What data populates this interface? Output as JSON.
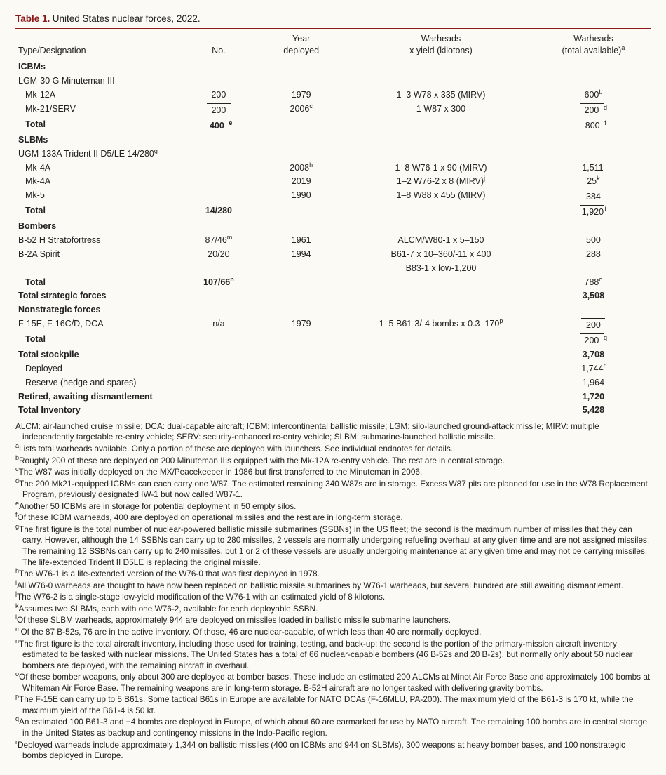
{
  "title_label": "Table 1.",
  "title_text": "United States nuclear forces, 2022.",
  "columns": {
    "c1": "Type/Designation",
    "c2": "No.",
    "c3_line1": "Year",
    "c3_line2": "deployed",
    "c4_line1": "Warheads",
    "c4_line2": "x yield (kilotons)",
    "c5_line1": "Warheads",
    "c5_line2": "(total available)",
    "c5_sup": "a"
  },
  "rows": [
    {
      "c1": "ICBMs",
      "bold": true
    },
    {
      "c1": "LGM-30 G Minuteman III"
    },
    {
      "c1": "Mk-12A",
      "indent": 1,
      "c2": "200",
      "c3": "1979",
      "c4": "1–3 W78 x 335 (MIRV)",
      "c5": "600",
      "c5sup": "b"
    },
    {
      "c1": "Mk-21/SERV",
      "indent": 1,
      "c2": "200",
      "c2over": true,
      "c3": "2006",
      "c3sup": "c",
      "c4": "1 W87 x 300",
      "c5": "200",
      "c5over": true,
      "c5sup": "d"
    },
    {
      "c1": "Total",
      "indent": 1,
      "bold": true,
      "c2": "400",
      "c2over": true,
      "c2sup": "e",
      "c5": "800",
      "c5over": true,
      "c5sup": "f"
    },
    {
      "c1": "SLBMs",
      "bold": true
    },
    {
      "c1": "UGM-133A Trident II D5/LE 14/280",
      "c1sup": "g"
    },
    {
      "c1": "Mk-4A",
      "indent": 1,
      "c3": "2008",
      "c3sup": "h",
      "c4": "1–8 W76-1 x 90 (MIRV)",
      "c5": "1,511",
      "c5sup": "i"
    },
    {
      "c1": "Mk-4A",
      "indent": 1,
      "c3": "2019",
      "c4": "1–2 W76-2 x 8 (MIRV)",
      "c4sup": "j",
      "c5": "25",
      "c5sup": "k"
    },
    {
      "c1": "Mk-5",
      "indent": 1,
      "c3": "1990",
      "c4": "1–8 W88 x 455 (MIRV)",
      "c5": "384",
      "c5over": true
    },
    {
      "c1": "Total",
      "indent": 1,
      "bold": true,
      "c2": "14/280",
      "c5": "1,920",
      "c5over": true,
      "c5sup": "l"
    },
    {
      "c1": "Bombers",
      "bold": true
    },
    {
      "c1": "B-52 H Stratofortress",
      "c2": "87/46",
      "c2sup": "m",
      "c3": "1961",
      "c4": "ALCM/W80-1 x 5–150",
      "c5": "500"
    },
    {
      "c1": "B-2A Spirit",
      "c2": "20/20",
      "c3": "1994",
      "c4": "B61-7 x 10–360/-11 x 400",
      "c5": "288"
    },
    {
      "c1": "",
      "c4": "B83-1 x low-1,200"
    },
    {
      "c1": "Total",
      "indent": 1,
      "bold": true,
      "c2": "107/66",
      "c2sup": "n",
      "c5": "788",
      "c5sup": "o"
    },
    {
      "c1": "Total strategic forces",
      "bold": true,
      "c5": "3,508",
      "c5bold": true
    },
    {
      "c1": "Nonstrategic forces",
      "bold": true
    },
    {
      "c1": "F-15E, F-16C/D, DCA",
      "c2": "n/a",
      "c3": "1979",
      "c4": "1–5 B61-3/-4 bombs x 0.3–170",
      "c4sup": "p",
      "c5": "200",
      "c5over": true
    },
    {
      "c1": "Total",
      "indent": 1,
      "bold": true,
      "c5": "200",
      "c5over": true,
      "c5sup": "q"
    },
    {
      "c1": "Total stockpile",
      "bold": true,
      "c5": "3,708",
      "c5bold": true
    },
    {
      "c1": "Deployed",
      "indent": 1,
      "c5": "1,744",
      "c5sup": "r"
    },
    {
      "c1": "Reserve (hedge and spares)",
      "indent": 1,
      "c5": "1,964"
    },
    {
      "c1": "Retired, awaiting dismantlement",
      "bold": true,
      "c5": "1,720",
      "c5bold": true
    },
    {
      "c1": "Total Inventory",
      "bold": true,
      "c5": "5,428",
      "c5bold": true
    }
  ],
  "abbrev": "ALCM: air-launched cruise missile; DCA: dual-capable aircraft; ICBM: intercontinental ballistic missile; LGM: silo-launched ground-attack missile; MIRV: multiple independently targetable re-entry vehicle; SERV: security-enhanced re-entry vehicle; SLBM: submarine-launched ballistic missile.",
  "notes": [
    {
      "sup": "a",
      "t": "Lists total warheads available. Only a portion of these are deployed with launchers. See individual endnotes for details."
    },
    {
      "sup": "b",
      "t": "Roughly 200 of these are deployed on 200 Minuteman IIIs equipped with the Mk-12A re-entry vehicle. The rest are in central storage."
    },
    {
      "sup": "c",
      "t": "The W87 was initially deployed on the MX/Peacekeeper in 1986 but first transferred to the Minuteman in 2006."
    },
    {
      "sup": "d",
      "t": "The 200 Mk21-equipped ICBMs can each carry one W87. The estimated remaining 340 W87s are in storage. Excess W87 pits are planned for use in the W78 Replacement Program, previously designated IW-1 but now called W87-1."
    },
    {
      "sup": "e",
      "t": "Another 50 ICBMs are in storage for potential deployment in 50 empty silos."
    },
    {
      "sup": "f",
      "t": "Of these ICBM warheads, 400 are deployed on operational missiles and the rest are in long-term storage."
    },
    {
      "sup": "g",
      "t": "The first figure is the total number of nuclear-powered ballistic missile submarines (SSBNs) in the US fleet; the second is the maximum number of missiles that they can carry. However, although the 14 SSBNs can carry up to 280 missiles, 2 vessels are normally undergoing refueling overhaul at any given time and are not assigned missiles. The remaining 12 SSBNs can carry up to 240 missiles, but 1 or 2 of these vessels are usually undergoing maintenance at any given time and may not be carrying missiles. The life-extended Trident II D5LE is replacing the original missile."
    },
    {
      "sup": "h",
      "t": "The W76-1 is a life-extended version of the W76-0 that was first deployed in 1978."
    },
    {
      "sup": "i",
      "t": "All W76-0 warheads are thought to have now been replaced on ballistic missile submarines by W76-1 warheads, but several hundred are still awaiting dismantlement."
    },
    {
      "sup": "j",
      "t": "The W76-2 is a single-stage low-yield modification of the W76-1 with an estimated yield of 8 kilotons."
    },
    {
      "sup": "k",
      "t": "Assumes two SLBMs, each with one W76-2, available for each deployable SSBN."
    },
    {
      "sup": "l",
      "t": "Of these SLBM warheads, approximately 944 are deployed on missiles loaded in ballistic missile submarine launchers."
    },
    {
      "sup": "m",
      "t": "Of the 87 B-52s, 76 are in the active inventory. Of those, 46 are nuclear-capable, of which less than 40 are normally deployed."
    },
    {
      "sup": "n",
      "t": "The first figure is the total aircraft inventory, including those used for training, testing, and back-up; the second is the portion of the primary-mission aircraft inventory estimated to be tasked with nuclear missions. The United States has a total of 66 nuclear-capable bombers (46 B-52s and 20 B-2s), but normally only about 50 nuclear bombers are deployed, with the remaining aircraft in overhaul."
    },
    {
      "sup": "o",
      "t": "Of these bomber weapons, only about 300 are deployed at bomber bases. These include an estimated 200 ALCMs at Minot Air Force Base and approximately 100 bombs at Whiteman Air Force Base. The remaining weapons are in long-term storage. B-52H aircraft are no longer tasked with delivering gravity bombs."
    },
    {
      "sup": "p",
      "t": "The F-15E can carry up to 5 B61s. Some tactical B61s in Europe are available for NATO DCAs (F-16MLU, PA-200). The maximum yield of the B61-3 is 170 kt, while the maximum yield of the B61-4 is 50 kt."
    },
    {
      "sup": "q",
      "t": "An estimated 100 B61-3 and −4 bombs are deployed in Europe, of which about 60 are earmarked for use by NATO aircraft. The remaining 100 bombs are in central storage in the United States as backup and contingency missions in the Indo-Pacific region."
    },
    {
      "sup": "r",
      "t": "Deployed warheads include approximately 1,344 on ballistic missiles (400 on ICBMs and 944 on SLBMs), 300 weapons at heavy bomber bases, and 100 nonstrategic bombs deployed in Europe."
    }
  ]
}
